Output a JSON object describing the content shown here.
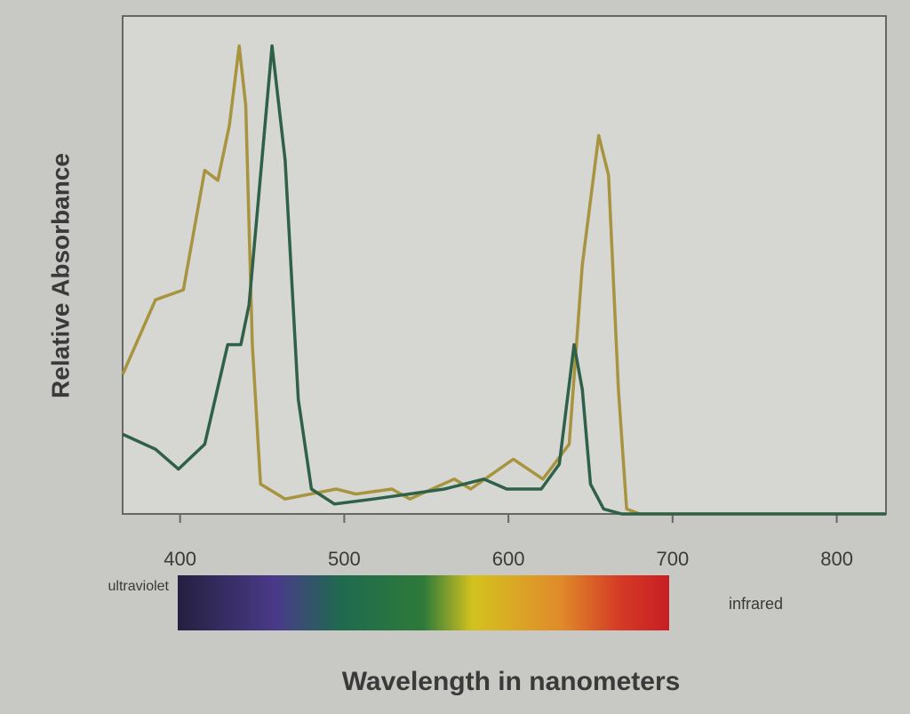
{
  "chart_data": {
    "type": "line",
    "xlabel": "Wavelength in nanometers",
    "ylabel": "Relative Absorbance",
    "annotations": [
      "ultraviolet",
      "infrared"
    ],
    "xlim": [
      365,
      830
    ],
    "ylim": [
      0,
      1
    ],
    "xticks": [
      400,
      500,
      600,
      700,
      800
    ],
    "series": [
      {
        "color": "#a8943e",
        "x": [
          365,
          385,
          402,
          415,
          423,
          430,
          436,
          440,
          444,
          449,
          464,
          495,
          507,
          529,
          540,
          567,
          577,
          603,
          621,
          637,
          645,
          655,
          661,
          667,
          672,
          680,
          830
        ],
        "values": [
          0.28,
          0.43,
          0.45,
          0.69,
          0.67,
          0.78,
          0.94,
          0.82,
          0.34,
          0.06,
          0.03,
          0.05,
          0.04,
          0.05,
          0.03,
          0.07,
          0.05,
          0.11,
          0.07,
          0.14,
          0.5,
          0.76,
          0.68,
          0.25,
          0.01,
          0,
          0
        ]
      },
      {
        "color": "#2f6048",
        "x": [
          365,
          385,
          399,
          415,
          429,
          437,
          442,
          456,
          464,
          472,
          480,
          494,
          518,
          561,
          585,
          599,
          620,
          631,
          640,
          645,
          650,
          658,
          669,
          830
        ],
        "values": [
          0.16,
          0.13,
          0.09,
          0.14,
          0.34,
          0.34,
          0.42,
          0.94,
          0.71,
          0.23,
          0.05,
          0.02,
          0.03,
          0.05,
          0.07,
          0.05,
          0.05,
          0.1,
          0.34,
          0.25,
          0.06,
          0.01,
          0,
          0
        ]
      }
    ]
  }
}
